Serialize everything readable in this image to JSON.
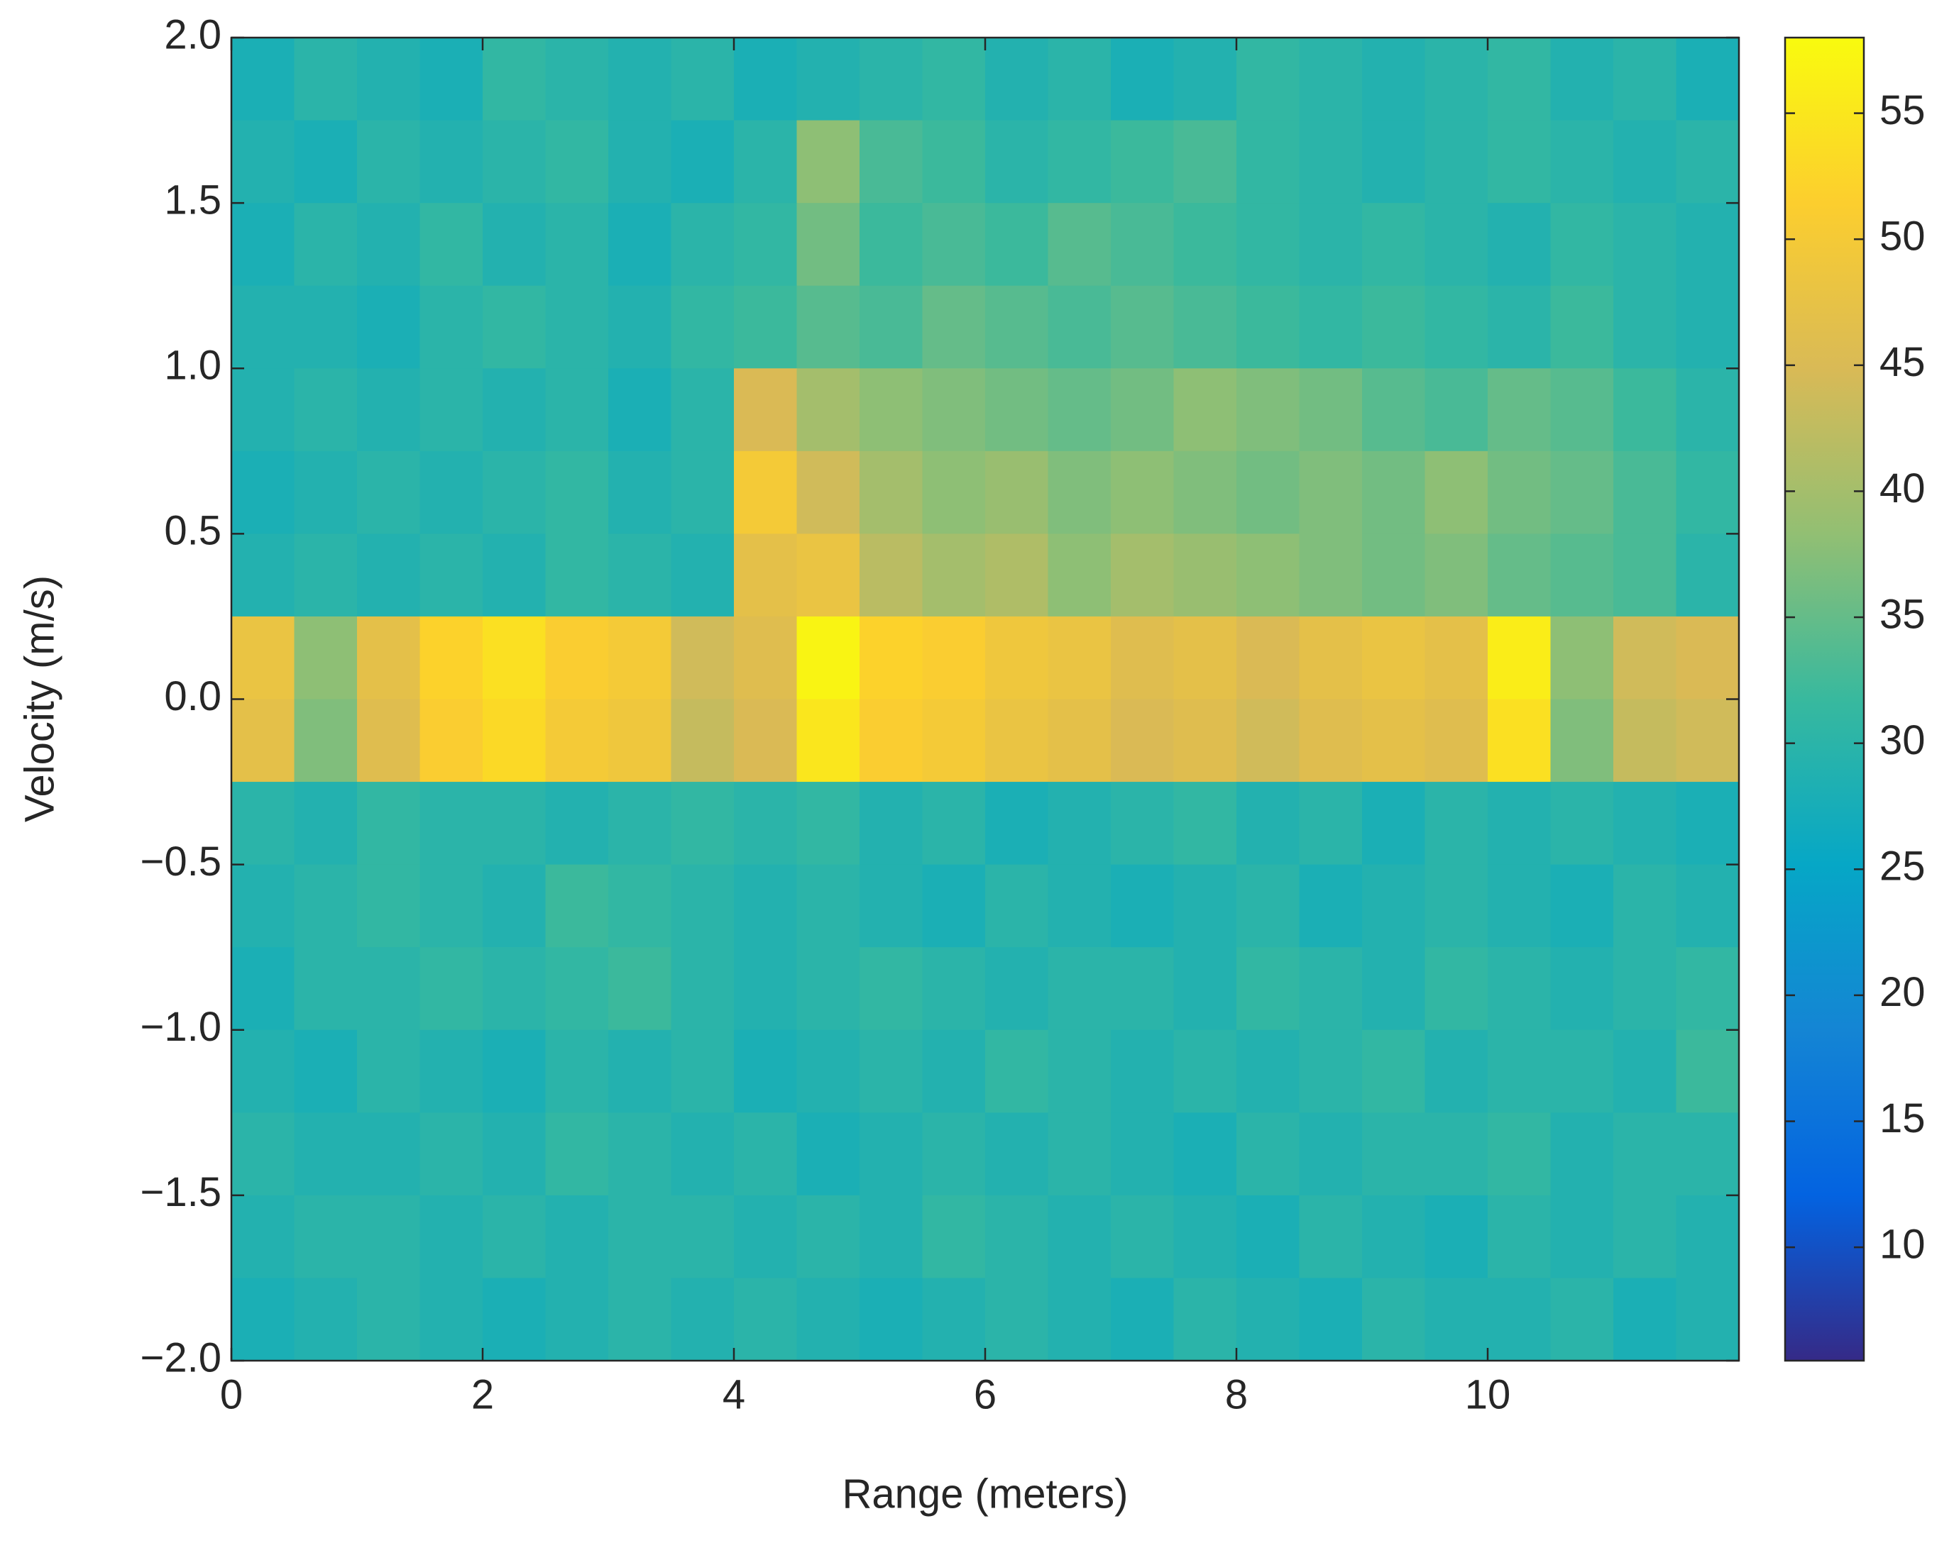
{
  "chart_data": {
    "type": "heatmap",
    "xlabel": "Range (meters)",
    "ylabel": "Velocity (m/s)",
    "x": [
      0.25,
      0.75,
      1.25,
      1.75,
      2.25,
      2.75,
      3.25,
      3.75,
      4.25,
      4.75,
      5.25,
      5.75,
      6.25,
      6.75,
      7.25,
      7.75,
      8.25,
      8.75,
      9.25,
      9.75,
      10.25,
      10.75,
      11.25,
      11.75
    ],
    "y": [
      1.875,
      1.625,
      1.375,
      1.125,
      0.875,
      0.625,
      0.375,
      0.125,
      -0.125,
      -0.375,
      -0.625,
      -0.875,
      -1.125,
      -1.375,
      -1.625,
      -1.875
    ],
    "z": [
      [
        28,
        30,
        29,
        28,
        31,
        30,
        29,
        30,
        28,
        29,
        30,
        31,
        29,
        30,
        28,
        29,
        31,
        30,
        29,
        30,
        31,
        29,
        30,
        28
      ],
      [
        29,
        28,
        30,
        29,
        30,
        31,
        29,
        28,
        30,
        38,
        33,
        32,
        30,
        31,
        32,
        33,
        31,
        30,
        29,
        30,
        31,
        30,
        29,
        30
      ],
      [
        28,
        30,
        29,
        31,
        29,
        30,
        28,
        30,
        31,
        36,
        32,
        33,
        32,
        34,
        33,
        32,
        31,
        30,
        31,
        30,
        29,
        31,
        30,
        29
      ],
      [
        29,
        29,
        28,
        30,
        31,
        30,
        29,
        31,
        32,
        34,
        33,
        35,
        34,
        33,
        34,
        33,
        32,
        31,
        32,
        31,
        30,
        32,
        30,
        29
      ],
      [
        29,
        30,
        29,
        30,
        29,
        30,
        28,
        30,
        45,
        40,
        38,
        37,
        36,
        35,
        36,
        38,
        37,
        36,
        34,
        33,
        35,
        34,
        32,
        30
      ],
      [
        28,
        29,
        30,
        29,
        30,
        31,
        29,
        30,
        50,
        44,
        40,
        38,
        39,
        37,
        38,
        37,
        36,
        37,
        36,
        38,
        36,
        35,
        33,
        31
      ],
      [
        29,
        30,
        29,
        30,
        29,
        31,
        30,
        29,
        47,
        48,
        42,
        40,
        41,
        38,
        40,
        39,
        38,
        37,
        36,
        37,
        35,
        34,
        33,
        30
      ],
      [
        48,
        38,
        47,
        52,
        54,
        51,
        50,
        44,
        46,
        57,
        52,
        51,
        49,
        48,
        46,
        47,
        45,
        47,
        48,
        47,
        56,
        38,
        44,
        45
      ],
      [
        47,
        37,
        46,
        51,
        53,
        50,
        49,
        43,
        45,
        55,
        51,
        50,
        48,
        47,
        45,
        46,
        44,
        46,
        47,
        46,
        54,
        37,
        43,
        44
      ],
      [
        30,
        29,
        31,
        30,
        30,
        29,
        30,
        31,
        30,
        31,
        29,
        30,
        28,
        29,
        30,
        31,
        29,
        30,
        28,
        30,
        29,
        30,
        29,
        28
      ],
      [
        29,
        30,
        31,
        30,
        29,
        32,
        31,
        30,
        29,
        30,
        29,
        28,
        30,
        29,
        28,
        29,
        30,
        28,
        29,
        30,
        29,
        28,
        30,
        29
      ],
      [
        28,
        30,
        30,
        31,
        30,
        31,
        32,
        30,
        29,
        30,
        31,
        30,
        29,
        30,
        30,
        29,
        31,
        30,
        29,
        31,
        30,
        29,
        30,
        31
      ],
      [
        29,
        28,
        30,
        29,
        28,
        30,
        29,
        30,
        28,
        29,
        30,
        29,
        31,
        30,
        29,
        30,
        29,
        30,
        31,
        29,
        30,
        30,
        29,
        32
      ],
      [
        30,
        29,
        29,
        30,
        29,
        31,
        30,
        29,
        30,
        28,
        29,
        30,
        29,
        30,
        29,
        28,
        30,
        29,
        30,
        30,
        31,
        29,
        30,
        30
      ],
      [
        29,
        30,
        30,
        29,
        30,
        29,
        30,
        30,
        29,
        30,
        29,
        31,
        30,
        29,
        30,
        29,
        28,
        30,
        29,
        28,
        30,
        29,
        30,
        29
      ],
      [
        28,
        29,
        30,
        29,
        28,
        29,
        30,
        29,
        30,
        29,
        28,
        29,
        30,
        29,
        28,
        30,
        29,
        28,
        30,
        29,
        29,
        30,
        28,
        29
      ]
    ],
    "xlim": [
      0,
      12
    ],
    "xticks": [
      0,
      2,
      4,
      6,
      8,
      10
    ],
    "ylim": [
      -2,
      2
    ],
    "yticks": [
      {
        "value": -2,
        "label": "−2.0"
      },
      {
        "value": -1.5,
        "label": "−1.5"
      },
      {
        "value": -1,
        "label": "−1.0"
      },
      {
        "value": -0.5,
        "label": "−0.5"
      },
      {
        "value": 0,
        "label": "0.0"
      },
      0.5,
      {
        "value": 1,
        "label": "1.0"
      },
      1.5,
      {
        "value": 2,
        "label": "2.0"
      }
    ],
    "clim": [
      5.5,
      58
    ],
    "cticks": [
      10,
      15,
      20,
      25,
      30,
      35,
      40,
      45,
      50,
      55
    ],
    "colormap": [
      "#352a87",
      "#0363e1",
      "#1485d4",
      "#06a7c6",
      "#38b99e",
      "#92bf73",
      "#d9ba56",
      "#fcce2e",
      "#f9fb0e"
    ]
  }
}
